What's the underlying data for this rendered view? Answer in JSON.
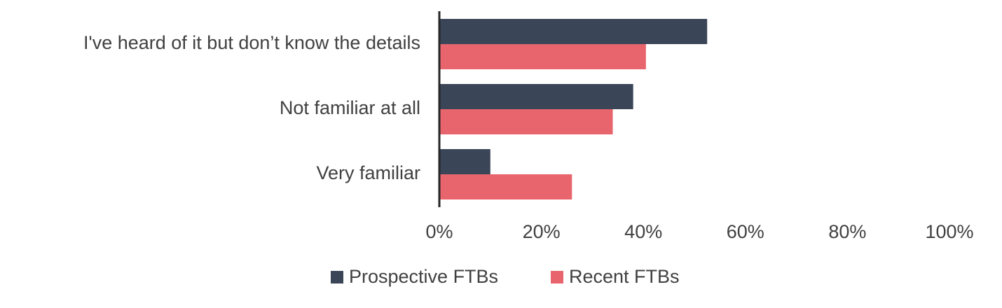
{
  "chart_data": {
    "type": "hbar",
    "categories": [
      "I've heard of it but don’t know the details",
      "Not familiar at all",
      "Very familiar"
    ],
    "series": [
      {
        "name": "Prospective FTBs",
        "color": "#3a4558",
        "values": [
          52.5,
          38,
          10
        ]
      },
      {
        "name": "Recent FTBs",
        "color": "#e8656d",
        "values": [
          40.5,
          34,
          26
        ]
      }
    ],
    "xlim": [
      0,
      100
    ],
    "xticks": [
      {
        "value": 0,
        "label": "0%"
      },
      {
        "value": 20,
        "label": "20%"
      },
      {
        "value": 40,
        "label": "40%"
      },
      {
        "value": 60,
        "label": "60%"
      },
      {
        "value": 80,
        "label": "80%"
      },
      {
        "value": 100,
        "label": "100%"
      }
    ],
    "legend": "bottom"
  }
}
